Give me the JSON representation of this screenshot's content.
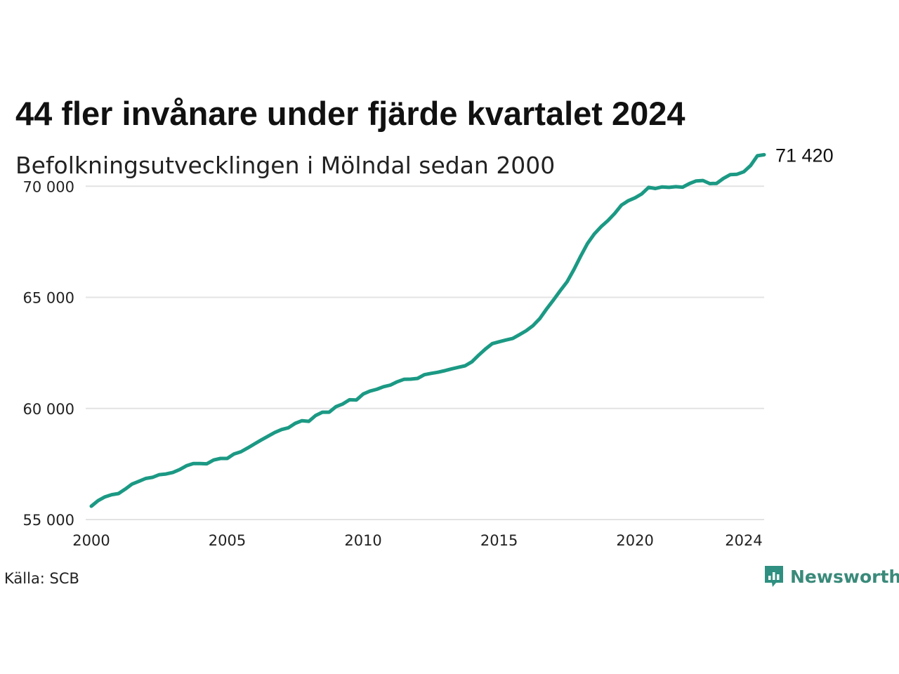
{
  "title": "44 fler invånare under fjärde kvartalet 2024",
  "subtitle": "Befolkningsutvecklingen i Mölndal sedan 2000",
  "source": "Källa: SCB",
  "brand": {
    "name": "Newsworthy",
    "icon": "newsworthy-logo-icon",
    "color": "#2f8f80"
  },
  "colors": {
    "line": "#1b9984",
    "grid": "#e3e3e3"
  },
  "chart_data": {
    "type": "line",
    "title": "44 fler invånare under fjärde kvartalet 2024",
    "subtitle": "Befolkningsutvecklingen i Mölndal sedan 2000",
    "xlabel": "",
    "ylabel": "",
    "xlim": [
      2000,
      2024.75
    ],
    "ylim": [
      55000,
      72000
    ],
    "grid": true,
    "x_ticks": [
      2000,
      2005,
      2010,
      2015,
      2020,
      2024
    ],
    "x_tick_labels": [
      "2000",
      "2005",
      "2010",
      "2015",
      "2020",
      "2024"
    ],
    "y_ticks": [
      55000,
      60000,
      65000,
      70000
    ],
    "y_tick_labels": [
      "55 000",
      "60 000",
      "65 000",
      "70 000"
    ],
    "end_label": "71 420",
    "series": [
      {
        "x": [
          2000.0,
          2000.25,
          2000.5,
          2000.75,
          2001.0,
          2001.25,
          2001.5,
          2001.75,
          2002.0,
          2002.25,
          2002.5,
          2002.75,
          2003.0,
          2003.25,
          2003.5,
          2003.75,
          2004.0,
          2004.25,
          2004.5,
          2004.75,
          2005.0,
          2005.25,
          2005.5,
          2005.75,
          2006.0,
          2006.25,
          2006.5,
          2006.75,
          2007.0,
          2007.25,
          2007.5,
          2007.75,
          2008.0,
          2008.25,
          2008.5,
          2008.75,
          2009.0,
          2009.25,
          2009.5,
          2009.75,
          2010.0,
          2010.25,
          2010.5,
          2010.75,
          2011.0,
          2011.25,
          2011.5,
          2011.75,
          2012.0,
          2012.25,
          2012.5,
          2012.75,
          2013.0,
          2013.25,
          2013.5,
          2013.75,
          2014.0,
          2014.25,
          2014.5,
          2014.75,
          2015.0,
          2015.25,
          2015.5,
          2015.75,
          2016.0,
          2016.25,
          2016.5,
          2016.75,
          2017.0,
          2017.25,
          2017.5,
          2017.75,
          2018.0,
          2018.25,
          2018.5,
          2018.75,
          2019.0,
          2019.25,
          2019.5,
          2019.75,
          2020.0,
          2020.25,
          2020.5,
          2020.75,
          2021.0,
          2021.25,
          2021.5,
          2021.75,
          2022.0,
          2022.25,
          2022.5,
          2022.75,
          2023.0,
          2023.25,
          2023.5,
          2023.75,
          2024.0,
          2024.25,
          2024.5,
          2024.75
        ],
        "values": [
          55600,
          55850,
          56020,
          56120,
          56170,
          56370,
          56600,
          56720,
          56850,
          56900,
          57020,
          57050,
          57120,
          57250,
          57420,
          57520,
          57520,
          57510,
          57680,
          57750,
          57750,
          57950,
          58050,
          58220,
          58400,
          58580,
          58750,
          58920,
          59050,
          59130,
          59330,
          59450,
          59420,
          59680,
          59830,
          59830,
          60080,
          60200,
          60390,
          60380,
          60650,
          60780,
          60860,
          60980,
          61050,
          61200,
          61310,
          61320,
          61350,
          61520,
          61580,
          61630,
          61700,
          61780,
          61850,
          61920,
          62100,
          62400,
          62680,
          62920,
          63000,
          63080,
          63150,
          63320,
          63500,
          63730,
          64050,
          64480,
          64880,
          65300,
          65700,
          66250,
          66850,
          67420,
          67850,
          68180,
          68450,
          68770,
          69150,
          69350,
          69480,
          69660,
          69950,
          69900,
          69970,
          69950,
          69980,
          69960,
          70120,
          70240,
          70260,
          70120,
          70130,
          70350,
          70520,
          70540,
          70650,
          70930,
          71370,
          71420
        ]
      }
    ]
  }
}
